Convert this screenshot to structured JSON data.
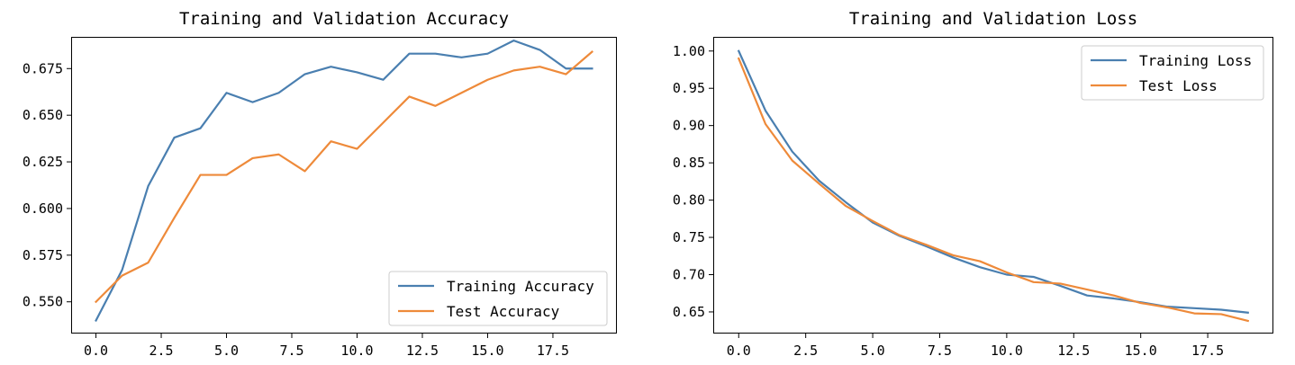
{
  "chart_data": [
    {
      "type": "line",
      "title": "Training and Validation Accuracy",
      "xlabel": "",
      "ylabel": "",
      "xlim": [
        -0.95,
        19.95
      ],
      "ylim": [
        0.533,
        0.692
      ],
      "xticks": [
        0.0,
        2.5,
        5.0,
        7.5,
        10.0,
        12.5,
        15.0,
        17.5
      ],
      "xtick_labels": [
        "0.0",
        "2.5",
        "5.0",
        "7.5",
        "10.0",
        "12.5",
        "15.0",
        "17.5"
      ],
      "yticks": [
        0.55,
        0.575,
        0.6,
        0.625,
        0.65,
        0.675
      ],
      "ytick_labels": [
        "0.550",
        "0.575",
        "0.600",
        "0.625",
        "0.650",
        "0.675"
      ],
      "legend_position": "lower right",
      "x": [
        0,
        1,
        2,
        3,
        4,
        5,
        6,
        7,
        8,
        9,
        10,
        11,
        12,
        13,
        14,
        15,
        16,
        17,
        18,
        19
      ],
      "series": [
        {
          "name": "Training Accuracy",
          "color": "#4a7fb0",
          "values": [
            0.54,
            0.567,
            0.612,
            0.638,
            0.643,
            0.662,
            0.657,
            0.662,
            0.672,
            0.676,
            0.673,
            0.669,
            0.683,
            0.683,
            0.681,
            0.683,
            0.69,
            0.685,
            0.675,
            0.675
          ]
        },
        {
          "name": "Test Accuracy",
          "color": "#ee8a3a",
          "values": [
            0.55,
            0.564,
            0.571,
            0.595,
            0.618,
            0.618,
            0.627,
            0.629,
            0.62,
            0.636,
            0.632,
            0.646,
            0.66,
            0.655,
            0.662,
            0.669,
            0.674,
            0.676,
            0.672,
            0.684
          ]
        }
      ]
    },
    {
      "type": "line",
      "title": "Training and Validation Loss",
      "xlabel": "",
      "ylabel": "",
      "xlim": [
        -0.95,
        19.95
      ],
      "ylim": [
        0.621,
        1.019
      ],
      "xticks": [
        0.0,
        2.5,
        5.0,
        7.5,
        10.0,
        12.5,
        15.0,
        17.5
      ],
      "xtick_labels": [
        "0.0",
        "2.5",
        "5.0",
        "7.5",
        "10.0",
        "12.5",
        "15.0",
        "17.5"
      ],
      "yticks": [
        0.65,
        0.7,
        0.75,
        0.8,
        0.85,
        0.9,
        0.95,
        1.0
      ],
      "ytick_labels": [
        "0.65",
        "0.70",
        "0.75",
        "0.80",
        "0.85",
        "0.90",
        "0.95",
        "1.00"
      ],
      "legend_position": "upper right",
      "x": [
        0,
        1,
        2,
        3,
        4,
        5,
        6,
        7,
        8,
        9,
        10,
        11,
        12,
        13,
        14,
        15,
        16,
        17,
        18,
        19
      ],
      "series": [
        {
          "name": "Training Loss",
          "color": "#4a7fb0",
          "values": [
            1.0,
            0.92,
            0.865,
            0.826,
            0.797,
            0.77,
            0.752,
            0.738,
            0.723,
            0.71,
            0.7,
            0.697,
            0.685,
            0.672,
            0.668,
            0.663,
            0.657,
            0.655,
            0.653,
            0.649
          ]
        },
        {
          "name": "Test Loss",
          "color": "#ee8a3a",
          "values": [
            0.99,
            0.902,
            0.853,
            0.822,
            0.792,
            0.772,
            0.753,
            0.74,
            0.726,
            0.718,
            0.703,
            0.69,
            0.688,
            0.68,
            0.672,
            0.662,
            0.656,
            0.648,
            0.647,
            0.638
          ]
        }
      ]
    }
  ]
}
